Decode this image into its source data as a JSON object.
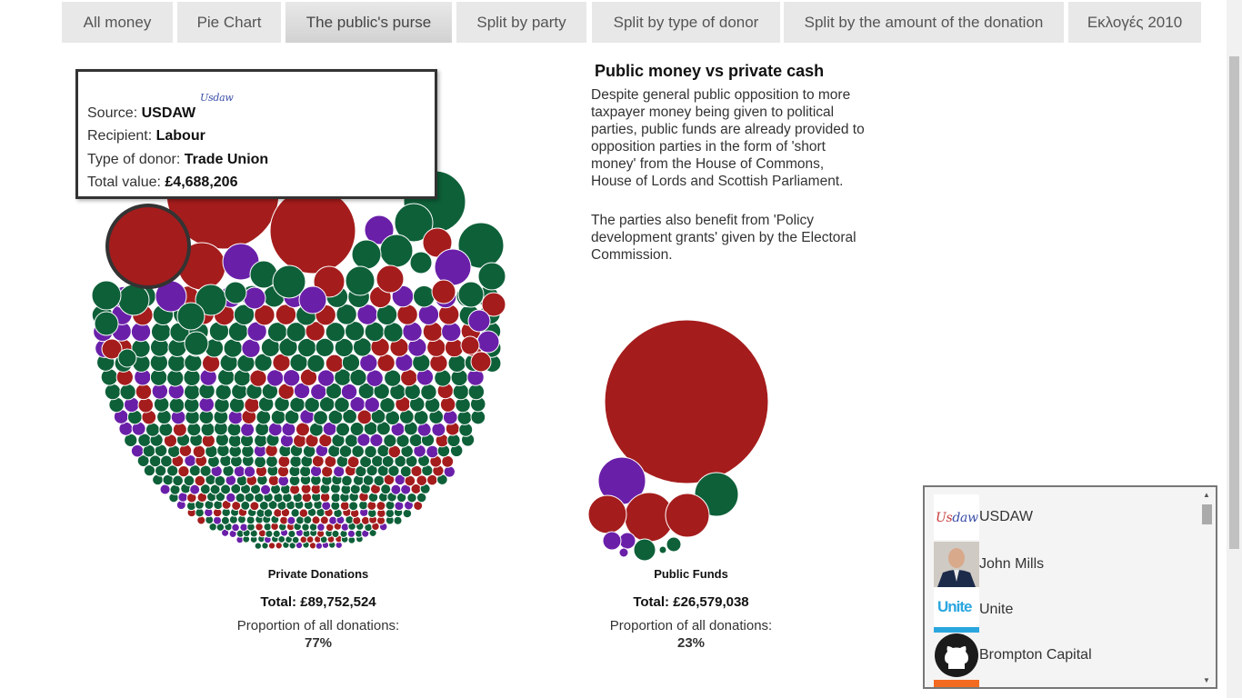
{
  "tabs": [
    {
      "label": "All money"
    },
    {
      "label": "Pie Chart"
    },
    {
      "label": "The public's purse",
      "active": true
    },
    {
      "label": "Split by party"
    },
    {
      "label": "Split by type of donor"
    },
    {
      "label": "Split by the amount of the donation"
    },
    {
      "label": "Εκλογές 2010"
    }
  ],
  "tooltip": {
    "logo_a": "Us",
    "logo_b": "daw",
    "source_label": "Source: ",
    "source": "USDAW",
    "recipient_label": "Recipient: ",
    "recipient": "Labour",
    "type_label": "Type of donor: ",
    "type": "Trade Union",
    "value_label": "Total value: ",
    "value": "£4,688,206"
  },
  "info": {
    "title": "Public money vs private cash",
    "p1": "Despite general public opposition to more taxpayer money being given to political parties, public funds are already provided to opposition parties in the form of 'short money' from the House of Commons, House of Lords and Scottish Parliament.",
    "p2": "The parties also benefit from 'Policy development grants' given by the Electoral Commission."
  },
  "private": {
    "label": "Private Donations",
    "total_label": "Total: ",
    "total": "£89,752,524",
    "prop_label": "Proportion of all donations:",
    "prop": "77%"
  },
  "public": {
    "label": "Public Funds",
    "total_label": "Total: ",
    "total": "£26,579,038",
    "prop_label": "Proportion of all donations:",
    "prop": "23%"
  },
  "colors": {
    "labour": "#a51c1c",
    "conservative": "#0e6039",
    "libdem": "#6a1fa9",
    "stroke": "#ffffff"
  },
  "donors": [
    {
      "name": "USDAW",
      "icon": "usdaw-logo"
    },
    {
      "name": "John Mills",
      "icon": "portrait-photo"
    },
    {
      "name": "Unite",
      "icon": "unite-logo"
    },
    {
      "name": "Brompton Capital",
      "icon": "github-octocat-icon"
    }
  ],
  "donor_logos": {
    "unite": "Unite"
  }
}
